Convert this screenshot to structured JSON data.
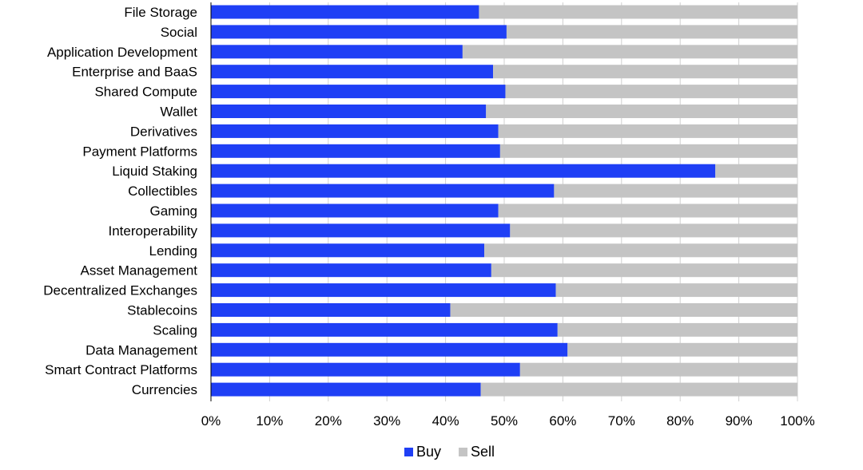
{
  "chart_data": {
    "type": "bar",
    "orientation": "horizontal",
    "stacked": true,
    "title": "",
    "xlabel": "",
    "ylabel": "",
    "categories": [
      "File Storage",
      "Social",
      "Application Development",
      "Enterprise and BaaS",
      "Shared Compute",
      "Wallet",
      "Derivatives",
      "Payment Platforms",
      "Liquid Staking",
      "Collectibles",
      "Gaming",
      "Interoperability",
      "Lending",
      "Asset Management",
      "Decentralized Exchanges",
      "Stablecoins",
      "Scaling",
      "Data Management",
      "Smart Contract Platforms",
      "Currencies"
    ],
    "series": [
      {
        "name": "Buy",
        "color": "#1f3ff5",
        "values": [
          45.7,
          50.4,
          42.9,
          48.1,
          50.2,
          46.9,
          49.0,
          49.3,
          86.0,
          58.5,
          49.0,
          51.0,
          46.6,
          47.8,
          58.8,
          40.8,
          59.1,
          60.8,
          52.7,
          46.0
        ]
      },
      {
        "name": "Sell",
        "color": "#c4c4c4",
        "values": [
          54.3,
          49.6,
          57.1,
          51.9,
          49.8,
          53.1,
          51.0,
          50.7,
          14.0,
          41.5,
          51.0,
          49.0,
          53.4,
          52.2,
          41.2,
          59.2,
          40.9,
          39.2,
          47.3,
          54.0
        ]
      }
    ],
    "xlim": [
      0,
      100
    ],
    "xticks": [
      "0%",
      "10%",
      "20%",
      "30%",
      "40%",
      "50%",
      "60%",
      "70%",
      "80%",
      "90%",
      "100%"
    ],
    "grid": true,
    "legend_position": "bottom"
  }
}
